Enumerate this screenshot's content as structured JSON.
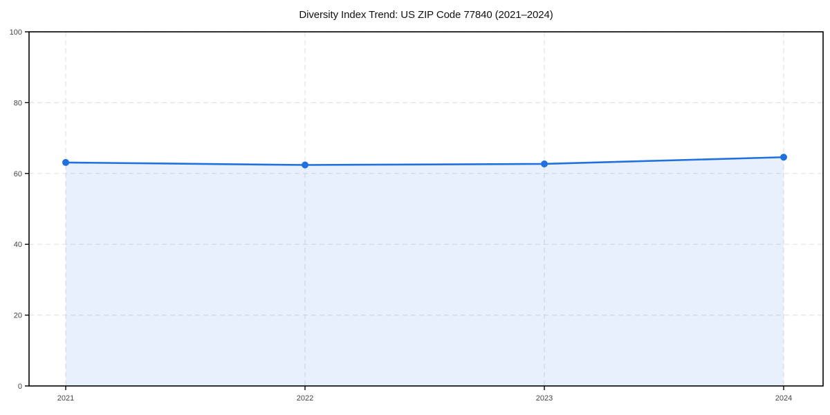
{
  "page": {
    "background": "#ffffff"
  },
  "chart_data": {
    "type": "area",
    "title": "Diversity Index Trend: US ZIP Code 77840 (2021–2024)",
    "categories": [
      "2021",
      "2022",
      "2023",
      "2024"
    ],
    "series": [
      {
        "name": "Diversity Index",
        "values": [
          63.1,
          62.4,
          62.7,
          64.6
        ]
      }
    ],
    "xlabel": "",
    "ylabel": "",
    "ylim": [
      0,
      100
    ],
    "y_ticks": [
      0,
      20,
      40,
      60,
      80,
      100
    ],
    "grid": "dashed",
    "legend_position": "none",
    "colors": {
      "line": "#2170e0",
      "marker": "#2170e0",
      "fill": "rgba(33, 112, 224, 0.10)",
      "grid": "#e3e3e3",
      "axis": "#000000",
      "tick_label": "#444444",
      "title": "#111111"
    }
  }
}
